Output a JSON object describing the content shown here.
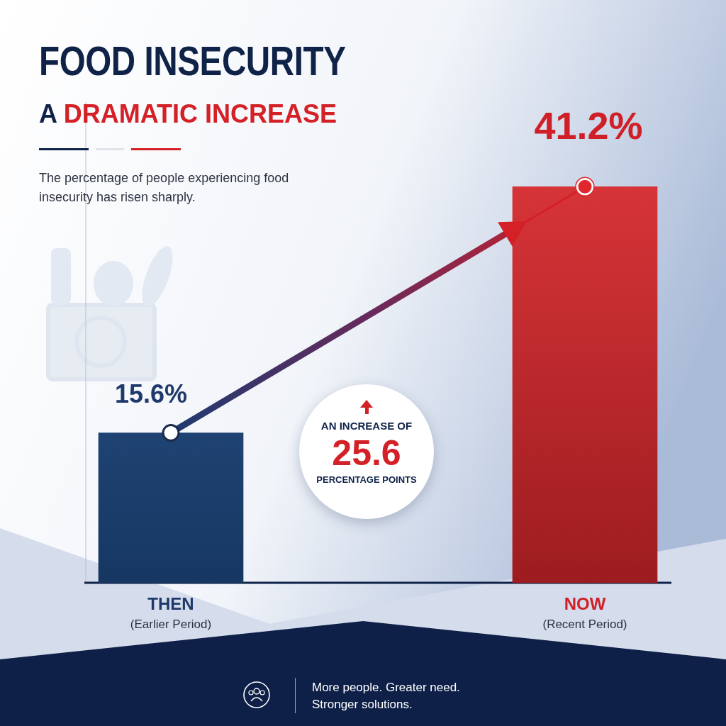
{
  "chart_data": {
    "type": "bar",
    "title": "FOOD INSECURITY",
    "subtitle": "A DRAMATIC INCREASE",
    "description": "The percentage of people experiencing food insecurity has risen sharply.",
    "categories": [
      "THEN",
      "NOW"
    ],
    "category_notes": [
      "(Earlier Period)",
      "(Recent Period)"
    ],
    "values": [
      15.6,
      41.2
    ],
    "value_labels": [
      "15.6%",
      "41.2%"
    ],
    "colors": [
      "#1f4e8c",
      "#e0282c"
    ],
    "ylim": [
      0,
      50
    ],
    "yticks": [],
    "grid": false,
    "data_labels": true,
    "tick_labels": "x",
    "annotation": [
      "AN INCREASE OF",
      "25.6",
      "PERCENTAGE POINTS"
    ],
    "footer": [
      "More people. Greater need.",
      "Stronger solutions."
    ]
  }
}
